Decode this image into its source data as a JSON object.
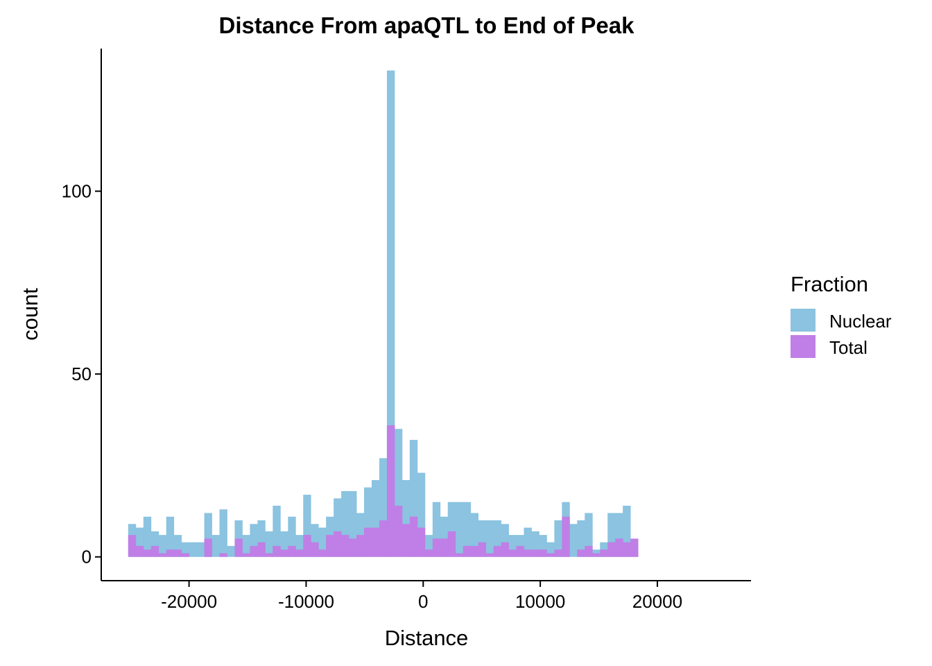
{
  "chart_data": {
    "type": "bar",
    "subtype": "overlaid-histogram",
    "title": "Distance From apaQTL to End of Peak",
    "xlabel": "Distance",
    "ylabel": "count",
    "xlim": [
      -27500,
      28000
    ],
    "ylim": [
      -6.5,
      139
    ],
    "xticks": [
      -20000,
      -10000,
      0,
      10000,
      20000
    ],
    "xtick_labels": [
      "-20000",
      "-10000",
      "0",
      "10000",
      "20000"
    ],
    "yticks": [
      0,
      50,
      100
    ],
    "ytick_labels": [
      "0",
      "50",
      "100"
    ],
    "bin_start": -25200,
    "bin_width": 650,
    "grid": false,
    "legend": {
      "title": "Fraction",
      "placement": "right",
      "entries": [
        {
          "label": "Nuclear",
          "color": "#8BC3E0"
        },
        {
          "label": "Total",
          "color": "#BF7FE6"
        }
      ]
    },
    "series": [
      {
        "name": "Nuclear",
        "color": "#8BC3E0",
        "values": [
          9,
          8,
          11,
          7,
          6,
          11,
          6,
          4,
          4,
          4,
          12,
          6,
          13,
          3,
          10,
          6,
          9,
          10,
          7,
          14,
          7,
          11,
          6,
          17,
          9,
          8,
          11,
          16,
          18,
          18,
          12,
          19,
          21,
          27,
          133,
          35,
          21,
          32,
          23,
          6,
          15,
          11,
          15,
          15,
          15,
          12,
          10,
          10,
          10,
          9,
          6,
          6,
          8,
          7,
          6,
          4,
          10,
          15,
          9,
          10,
          12,
          2,
          4,
          12,
          12,
          14,
          3
        ]
      },
      {
        "name": "Total",
        "color": "#BF7FE6",
        "values": [
          6,
          3,
          2,
          3,
          1,
          2,
          2,
          1,
          0,
          0,
          5,
          0,
          1,
          0,
          5,
          1,
          3,
          4,
          1,
          3,
          2,
          3,
          2,
          6,
          4,
          2,
          6,
          7,
          6,
          5,
          6,
          8,
          8,
          10,
          36,
          14,
          9,
          11,
          8,
          2,
          5,
          5,
          7,
          1,
          3,
          3,
          4,
          1,
          3,
          4,
          2,
          3,
          2,
          2,
          2,
          1,
          2,
          11,
          0,
          2,
          3,
          1,
          2,
          4,
          5,
          4,
          5
        ]
      }
    ]
  }
}
